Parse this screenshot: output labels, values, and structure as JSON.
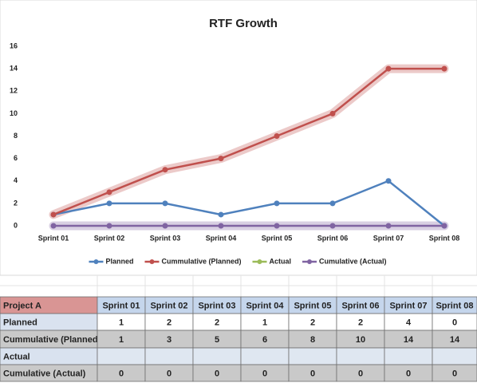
{
  "chart_data": {
    "type": "line",
    "title": "RTF Growth",
    "categories": [
      "Sprint 01",
      "Sprint 02",
      "Sprint 03",
      "Sprint 04",
      "Sprint 05",
      "Sprint 06",
      "Sprint 07",
      "Sprint 08"
    ],
    "series": [
      {
        "name": "Planned",
        "color": "#4f81bd",
        "glow": false,
        "values": [
          1,
          2,
          2,
          1,
          2,
          2,
          4,
          0
        ]
      },
      {
        "name": "Cummulative (Planned)",
        "color": "#c0504d",
        "glow": true,
        "values": [
          1,
          3,
          5,
          6,
          8,
          10,
          14,
          14
        ]
      },
      {
        "name": "Actual",
        "color": "#9bbb59",
        "glow": false,
        "values": [
          null,
          null,
          null,
          null,
          null,
          null,
          null,
          null
        ]
      },
      {
        "name": "Cumulative (Actual)",
        "color": "#8064a2",
        "glow": true,
        "values": [
          0,
          0,
          0,
          0,
          0,
          0,
          0,
          0
        ]
      }
    ],
    "ylim": [
      0,
      16
    ],
    "yticks": [
      0,
      2,
      4,
      6,
      8,
      10,
      12,
      14,
      16
    ],
    "grid": false,
    "legend": "bottom"
  },
  "table": {
    "corner": "Project A"
  }
}
